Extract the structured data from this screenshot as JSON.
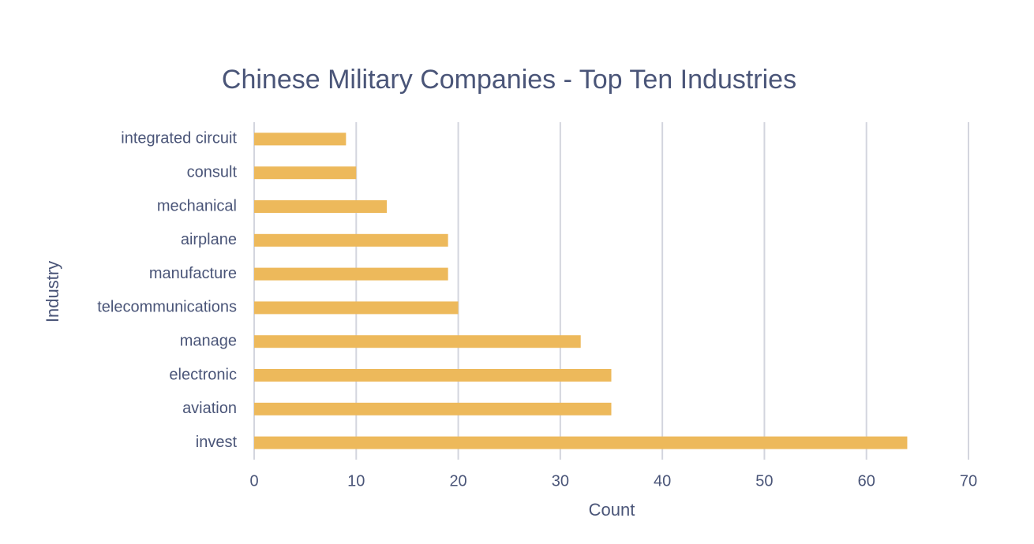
{
  "chart_data": {
    "type": "bar",
    "orientation": "horizontal",
    "title": "Chinese Military Companies - Top Ten Industries",
    "x_label": "Count",
    "y_label": "Industry",
    "categories": [
      "integrated circuit",
      "consult",
      "mechanical",
      "airplane",
      "manufacture",
      "telecommunications",
      "manage",
      "electronic",
      "aviation",
      "invest"
    ],
    "values": [
      9,
      10,
      13,
      19,
      19,
      20,
      32,
      35,
      35,
      64
    ],
    "color": "#edb95b",
    "xlim": [
      0,
      70
    ],
    "xticks": [
      0,
      10,
      20,
      30,
      40,
      50,
      60,
      70
    ],
    "grid": true
  }
}
